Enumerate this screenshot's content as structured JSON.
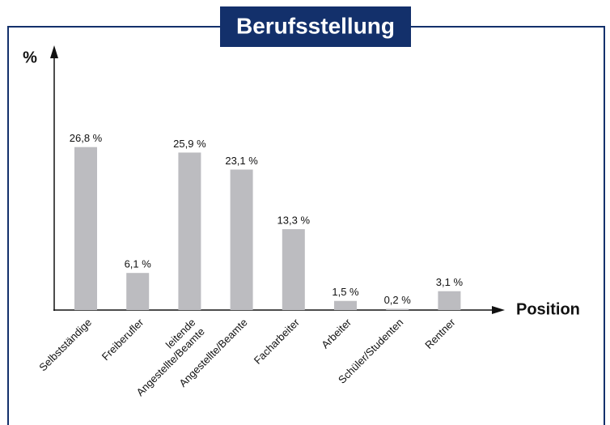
{
  "chart_data": {
    "type": "bar",
    "title": "Berufsstellung",
    "y_label": "%",
    "x_label": "Position",
    "categories": [
      "Selbstständige",
      "Freiberufler",
      "leitende\nAngestellte/Beamte",
      "Angestellte/Beamte",
      "Facharbeiter",
      "Arbeiter",
      "Schüler/Studenten",
      "Rentner"
    ],
    "values": [
      26.8,
      6.1,
      25.9,
      23.1,
      13.3,
      1.5,
      0.2,
      3.1
    ],
    "value_labels": [
      "26,8 %",
      "6,1 %",
      "25,9 %",
      "23,1 %",
      "13,3 %",
      "1,5 %",
      "0,2 %",
      "3,1 %"
    ],
    "color": "#bcbcc0",
    "ylim": [
      0,
      43
    ]
  }
}
